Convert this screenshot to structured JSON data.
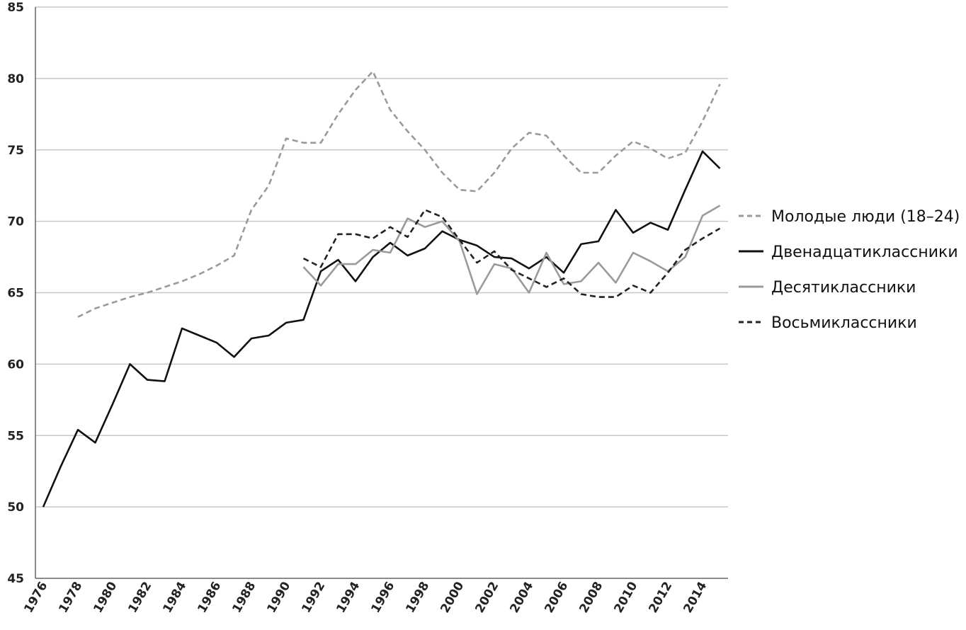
{
  "chart_data": {
    "type": "line",
    "title": "",
    "xlabel": "",
    "ylabel": "",
    "ylim": [
      45,
      85
    ],
    "yticks": [
      "45",
      "50",
      "55",
      "60",
      "65",
      "70",
      "75",
      "80",
      "85"
    ],
    "xlim": [
      1976,
      2015
    ],
    "xticks": [
      "1976",
      "1978",
      "1980",
      "1982",
      "1984",
      "1986",
      "1988",
      "1990",
      "1992",
      "1994",
      "1996",
      "1998",
      "2000",
      "2002",
      "2004",
      "2006",
      "2008",
      "2010",
      "2012",
      "2014"
    ],
    "grid": "horizontal",
    "legend_position": "right",
    "series": [
      {
        "name": "Молодые люди (18–24)",
        "color": "#9a9a9a",
        "style": "dashed",
        "points": [
          [
            1978,
            63.3
          ],
          [
            1979,
            63.9
          ],
          [
            1980,
            64.3
          ],
          [
            1981,
            64.7
          ],
          [
            1982,
            65.0
          ],
          [
            1983,
            65.4
          ],
          [
            1984,
            65.8
          ],
          [
            1985,
            66.3
          ],
          [
            1986,
            66.9
          ],
          [
            1987,
            67.6
          ],
          [
            1988,
            70.8
          ],
          [
            1989,
            72.5
          ],
          [
            1990,
            75.8
          ],
          [
            1991,
            75.5
          ],
          [
            1992,
            75.5
          ],
          [
            1993,
            77.5
          ],
          [
            1994,
            79.2
          ],
          [
            1995,
            80.5
          ],
          [
            1996,
            77.8
          ],
          [
            1997,
            76.3
          ],
          [
            1998,
            75.0
          ],
          [
            1999,
            73.4
          ],
          [
            2000,
            72.2
          ],
          [
            2001,
            72.1
          ],
          [
            2002,
            73.4
          ],
          [
            2003,
            75.1
          ],
          [
            2004,
            76.2
          ],
          [
            2005,
            76.0
          ],
          [
            2006,
            74.6
          ],
          [
            2007,
            73.4
          ],
          [
            2008,
            73.4
          ],
          [
            2009,
            74.6
          ],
          [
            2010,
            75.6
          ],
          [
            2011,
            75.1
          ],
          [
            2012,
            74.4
          ],
          [
            2013,
            74.8
          ],
          [
            2014,
            77.0
          ],
          [
            2015,
            79.6
          ]
        ]
      },
      {
        "name": "Двенадцатиклассники",
        "color": "#111111",
        "style": "solid",
        "points": [
          [
            1976,
            50.0
          ],
          [
            1977,
            52.8
          ],
          [
            1978,
            55.4
          ],
          [
            1979,
            54.5
          ],
          [
            1980,
            57.2
          ],
          [
            1981,
            60.0
          ],
          [
            1982,
            58.9
          ],
          [
            1983,
            58.8
          ],
          [
            1984,
            62.5
          ],
          [
            1985,
            62.0
          ],
          [
            1986,
            61.5
          ],
          [
            1987,
            60.5
          ],
          [
            1988,
            61.8
          ],
          [
            1989,
            62.0
          ],
          [
            1990,
            62.9
          ],
          [
            1991,
            63.1
          ],
          [
            1992,
            66.5
          ],
          [
            1993,
            67.3
          ],
          [
            1994,
            65.8
          ],
          [
            1995,
            67.5
          ],
          [
            1996,
            68.5
          ],
          [
            1997,
            67.6
          ],
          [
            1998,
            68.1
          ],
          [
            1999,
            69.3
          ],
          [
            2000,
            68.7
          ],
          [
            2001,
            68.3
          ],
          [
            2002,
            67.5
          ],
          [
            2003,
            67.4
          ],
          [
            2004,
            66.7
          ],
          [
            2005,
            67.5
          ],
          [
            2006,
            66.4
          ],
          [
            2007,
            68.4
          ],
          [
            2008,
            68.6
          ],
          [
            2009,
            70.8
          ],
          [
            2010,
            69.2
          ],
          [
            2011,
            69.9
          ],
          [
            2012,
            69.4
          ],
          [
            2013,
            72.2
          ],
          [
            2014,
            74.9
          ],
          [
            2015,
            73.7
          ]
        ]
      },
      {
        "name": "Десятиклассники",
        "color": "#9a9a9a",
        "style": "solid",
        "points": [
          [
            1991,
            66.8
          ],
          [
            1992,
            65.5
          ],
          [
            1993,
            67.0
          ],
          [
            1994,
            67.0
          ],
          [
            1995,
            68.0
          ],
          [
            1996,
            67.8
          ],
          [
            1997,
            70.2
          ],
          [
            1998,
            69.6
          ],
          [
            1999,
            70.0
          ],
          [
            2000,
            68.6
          ],
          [
            2001,
            64.9
          ],
          [
            2002,
            67.0
          ],
          [
            2003,
            66.7
          ],
          [
            2004,
            65.0
          ],
          [
            2005,
            67.8
          ],
          [
            2006,
            65.6
          ],
          [
            2007,
            65.8
          ],
          [
            2008,
            67.1
          ],
          [
            2009,
            65.7
          ],
          [
            2010,
            67.8
          ],
          [
            2011,
            67.2
          ],
          [
            2012,
            66.5
          ],
          [
            2013,
            67.5
          ],
          [
            2014,
            70.4
          ],
          [
            2015,
            71.1
          ]
        ]
      },
      {
        "name": "Восьмиклассники",
        "color": "#222222",
        "style": "dashed",
        "points": [
          [
            1991,
            67.4
          ],
          [
            1992,
            66.8
          ],
          [
            1993,
            69.1
          ],
          [
            1994,
            69.1
          ],
          [
            1995,
            68.8
          ],
          [
            1996,
            69.6
          ],
          [
            1997,
            68.9
          ],
          [
            1998,
            70.8
          ],
          [
            1999,
            70.3
          ],
          [
            2000,
            68.7
          ],
          [
            2001,
            67.1
          ],
          [
            2002,
            67.9
          ],
          [
            2003,
            66.6
          ],
          [
            2004,
            66.0
          ],
          [
            2005,
            65.4
          ],
          [
            2006,
            66.0
          ],
          [
            2007,
            64.9
          ],
          [
            2008,
            64.7
          ],
          [
            2009,
            64.7
          ],
          [
            2010,
            65.5
          ],
          [
            2011,
            65.0
          ],
          [
            2012,
            66.4
          ],
          [
            2013,
            68.0
          ],
          [
            2014,
            68.8
          ],
          [
            2015,
            69.5
          ]
        ]
      }
    ]
  }
}
